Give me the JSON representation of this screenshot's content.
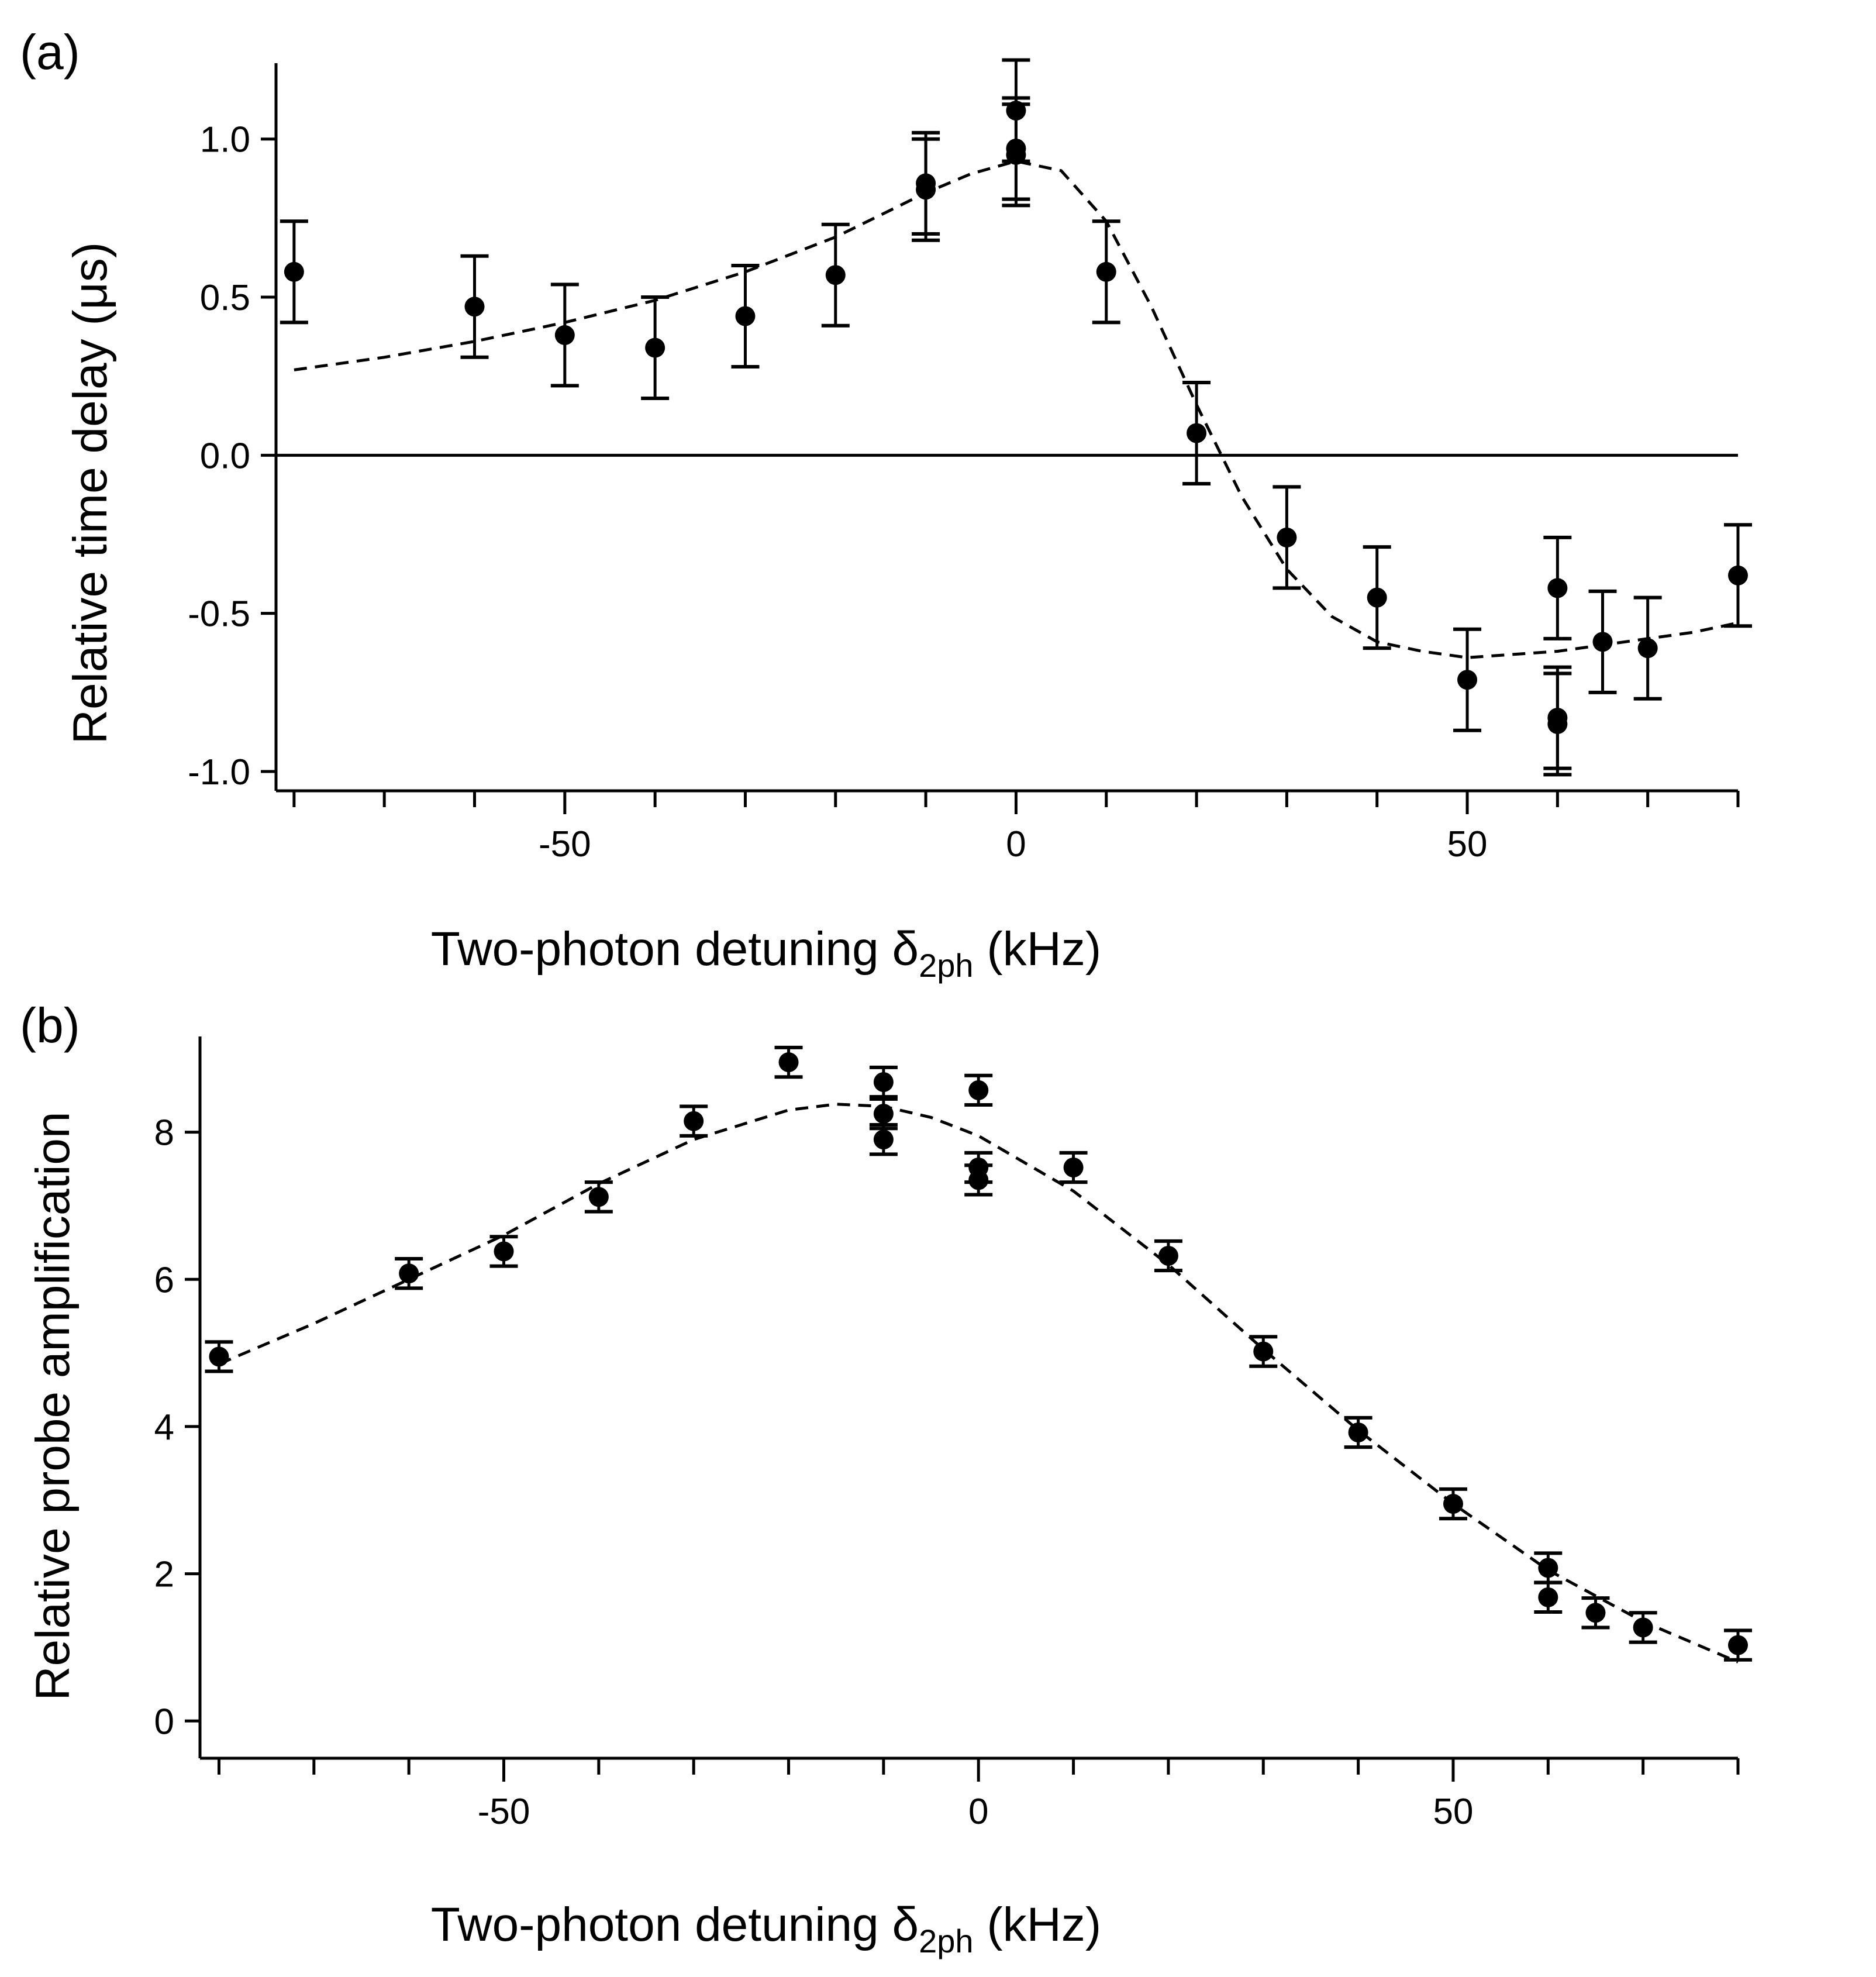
{
  "chart_data": [
    {
      "type": "scatter",
      "panel_label": "(a)",
      "title": "",
      "xlabel": {
        "main": "Two-photon detuning δ",
        "sub": "2ph",
        "unit": " (kHz)"
      },
      "ylabel": "Relative time delay (μs)",
      "xlim": [
        -82,
        80
      ],
      "ylim": [
        -1.05,
        1.24
      ],
      "x_ticks": [
        -50,
        0,
        50
      ],
      "x_tick_labels": [
        "-50",
        "0",
        "50"
      ],
      "x_minor_ticks": [
        -80,
        -70,
        -60,
        -50,
        -40,
        -30,
        -20,
        -10,
        0,
        10,
        20,
        30,
        40,
        50,
        60,
        70,
        80
      ],
      "y_ticks": [
        1.0,
        0.5,
        0.0,
        -0.5,
        -1.0
      ],
      "y_tick_labels": [
        "1.0",
        "0.5",
        "0.0",
        "-0.5",
        "-1.0"
      ],
      "zero_line": true,
      "grid": false,
      "points": [
        {
          "x": -80,
          "y": 0.58,
          "err": 0.16
        },
        {
          "x": -60,
          "y": 0.47,
          "err": 0.16
        },
        {
          "x": -50,
          "y": 0.38,
          "err": 0.16
        },
        {
          "x": -40,
          "y": 0.34,
          "err": 0.16
        },
        {
          "x": -30,
          "y": 0.44,
          "err": 0.16
        },
        {
          "x": -20,
          "y": 0.57,
          "err": 0.16
        },
        {
          "x": -10,
          "y": 0.86,
          "err": 0.16
        },
        {
          "x": -10,
          "y": 0.84,
          "err": 0.16
        },
        {
          "x": 0,
          "y": 1.09,
          "err": 0.16
        },
        {
          "x": 0,
          "y": 0.97,
          "err": 0.16
        },
        {
          "x": 0,
          "y": 0.95,
          "err": 0.16
        },
        {
          "x": 10,
          "y": 0.58,
          "err": 0.16
        },
        {
          "x": 20,
          "y": 0.07,
          "err": 0.16
        },
        {
          "x": 30,
          "y": -0.26,
          "err": 0.16
        },
        {
          "x": 40,
          "y": -0.45,
          "err": 0.16
        },
        {
          "x": 50,
          "y": -0.71,
          "err": 0.16
        },
        {
          "x": 60,
          "y": -0.42,
          "err": 0.16
        },
        {
          "x": 60,
          "y": -0.83,
          "err": 0.16
        },
        {
          "x": 60,
          "y": -0.85,
          "err": 0.16
        },
        {
          "x": 65,
          "y": -0.59,
          "err": 0.16
        },
        {
          "x": 70,
          "y": -0.61,
          "err": 0.16
        },
        {
          "x": 80,
          "y": -0.38,
          "err": 0.16
        }
      ],
      "fit": {
        "style": "dashed",
        "x": [
          -80,
          -70,
          -60,
          -50,
          -40,
          -30,
          -20,
          -10,
          -5,
          0,
          5,
          10,
          15,
          20,
          25,
          30,
          35,
          40,
          45,
          50,
          55,
          60,
          65,
          70,
          75,
          80
        ],
        "y": [
          0.27,
          0.31,
          0.36,
          0.42,
          0.49,
          0.58,
          0.69,
          0.83,
          0.89,
          0.93,
          0.9,
          0.74,
          0.47,
          0.16,
          -0.13,
          -0.36,
          -0.51,
          -0.59,
          -0.62,
          -0.64,
          -0.63,
          -0.62,
          -0.6,
          -0.58,
          -0.56,
          -0.53
        ]
      }
    },
    {
      "type": "scatter",
      "panel_label": "(b)",
      "title": "",
      "xlabel": {
        "main": "Two-photon detuning δ",
        "sub": "2ph",
        "unit": " (kHz)"
      },
      "ylabel": "Relative probe amplification",
      "xlim": [
        -82,
        80
      ],
      "ylim": [
        -0.3,
        9.3
      ],
      "x_ticks": [
        -50,
        0,
        50
      ],
      "x_tick_labels": [
        "-50",
        "0",
        "50"
      ],
      "x_minor_ticks": [
        -80,
        -70,
        -60,
        -50,
        -40,
        -30,
        -20,
        -10,
        0,
        10,
        20,
        30,
        40,
        50,
        60,
        70,
        80
      ],
      "y_ticks": [
        8,
        6,
        4,
        2,
        0
      ],
      "y_tick_labels": [
        "8",
        "6",
        "4",
        "2",
        "0"
      ],
      "zero_line": false,
      "grid": false,
      "points": [
        {
          "x": -80,
          "y": 4.95,
          "err": 0.2
        },
        {
          "x": -60,
          "y": 6.08,
          "err": 0.2
        },
        {
          "x": -50,
          "y": 6.38,
          "err": 0.2
        },
        {
          "x": -40,
          "y": 7.12,
          "err": 0.2
        },
        {
          "x": -30,
          "y": 8.15,
          "err": 0.2
        },
        {
          "x": -20,
          "y": 8.95,
          "err": 0.2
        },
        {
          "x": -10,
          "y": 8.68,
          "err": 0.2
        },
        {
          "x": -10,
          "y": 8.25,
          "err": 0.2
        },
        {
          "x": -10,
          "y": 7.9,
          "err": 0.2
        },
        {
          "x": 0,
          "y": 8.57,
          "err": 0.2
        },
        {
          "x": 0,
          "y": 7.52,
          "err": 0.2
        },
        {
          "x": 0,
          "y": 7.35,
          "err": 0.2
        },
        {
          "x": 10,
          "y": 7.52,
          "err": 0.2
        },
        {
          "x": 20,
          "y": 6.32,
          "err": 0.2
        },
        {
          "x": 30,
          "y": 5.02,
          "err": 0.2
        },
        {
          "x": 40,
          "y": 3.92,
          "err": 0.2
        },
        {
          "x": 50,
          "y": 2.95,
          "err": 0.2
        },
        {
          "x": 60,
          "y": 2.08,
          "err": 0.2
        },
        {
          "x": 60,
          "y": 1.68,
          "err": 0.2
        },
        {
          "x": 65,
          "y": 1.47,
          "err": 0.2
        },
        {
          "x": 70,
          "y": 1.27,
          "err": 0.2
        },
        {
          "x": 80,
          "y": 1.03,
          "err": 0.2
        }
      ],
      "fit": {
        "style": "dashed",
        "x": [
          -80,
          -70,
          -60,
          -50,
          -40,
          -30,
          -20,
          -15,
          -10,
          -5,
          0,
          10,
          20,
          30,
          40,
          50,
          60,
          70,
          80
        ],
        "y": [
          4.85,
          5.4,
          6.0,
          6.6,
          7.3,
          7.9,
          8.3,
          8.38,
          8.35,
          8.2,
          7.95,
          7.2,
          6.2,
          5.05,
          3.95,
          2.95,
          2.05,
          1.35,
          0.8
        ]
      }
    }
  ]
}
